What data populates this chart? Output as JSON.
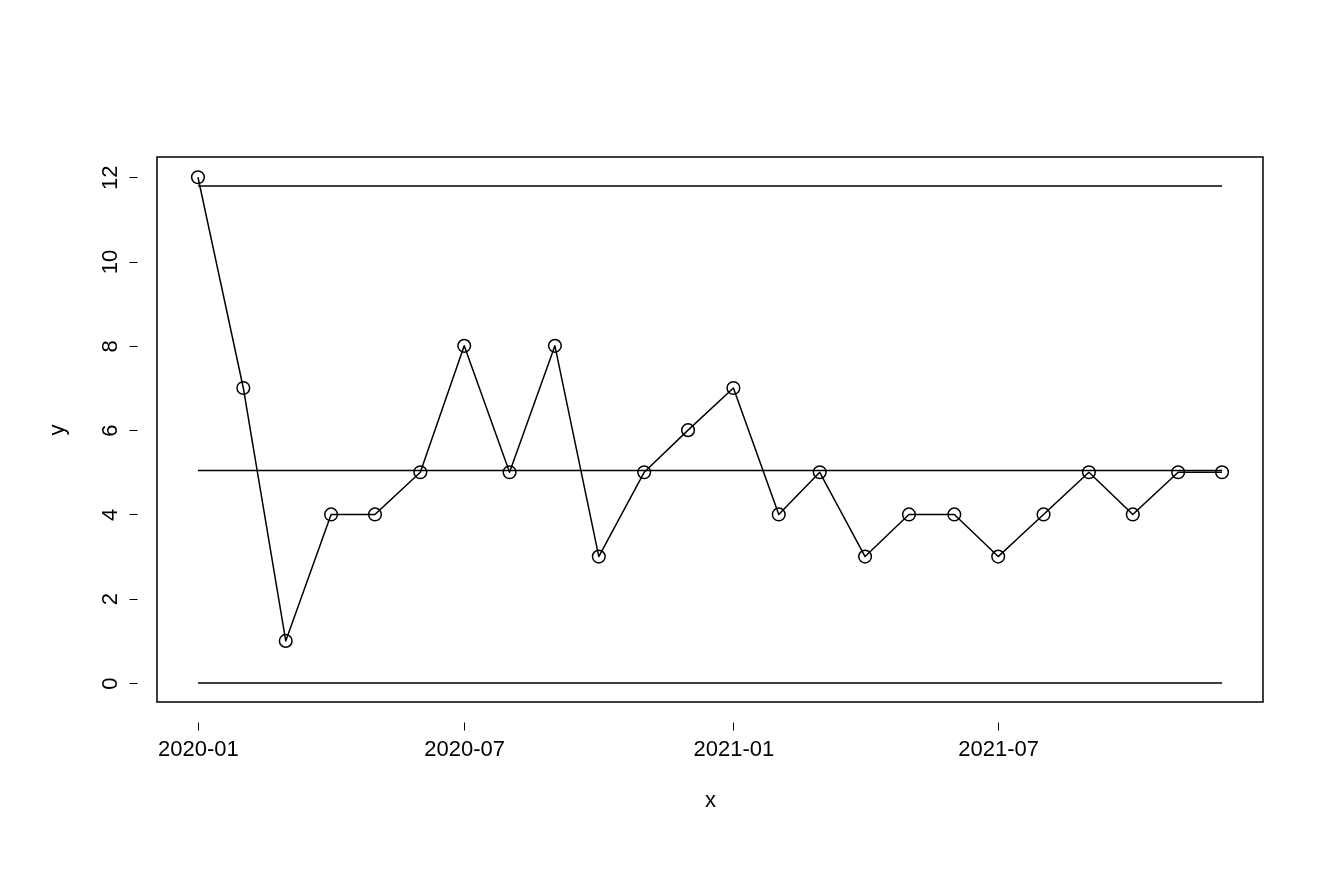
{
  "chart_data": {
    "type": "line",
    "xlabel": "x",
    "ylabel": "y",
    "x": [
      "2020-01",
      "2020-02",
      "2020-03",
      "2020-04",
      "2020-05",
      "2020-06",
      "2020-07",
      "2020-08",
      "2020-09",
      "2020-10",
      "2020-11",
      "2020-12",
      "2021-01",
      "2021-02",
      "2021-03",
      "2021-04",
      "2021-05",
      "2021-06",
      "2021-07",
      "2021-08",
      "2021-09",
      "2021-10",
      "2021-11",
      "2021-12"
    ],
    "series": [
      {
        "color": "#000000",
        "values": [
          12,
          7,
          1,
          4,
          4,
          5,
          8,
          5,
          8,
          3,
          5,
          6,
          7,
          4,
          5,
          3,
          4,
          4,
          3,
          4,
          5,
          4,
          5,
          5
        ]
      }
    ],
    "ref_lines": [
      {
        "axis": "y",
        "value": 11.79,
        "color": "#000000"
      },
      {
        "axis": "y",
        "value": 5.04,
        "color": "#000000"
      },
      {
        "axis": "y",
        "value": 0,
        "color": "#000000"
      }
    ],
    "xlim": [
      "2019-12-04",
      "2021-12-29"
    ],
    "xticks": [
      "2020-01",
      "2020-07",
      "2021-01",
      "2021-07"
    ],
    "ylim": [
      -0.45,
      12.48
    ],
    "yticks": [
      0,
      2,
      4,
      6,
      8,
      10,
      12
    ],
    "grid": false,
    "marker": "circle",
    "line_style": "solid"
  }
}
